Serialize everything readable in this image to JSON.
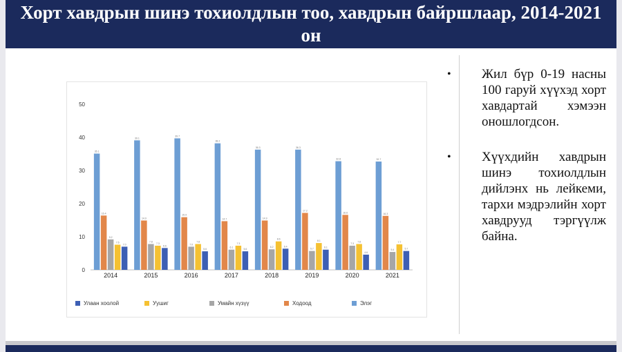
{
  "title": "Хорт хавдрын шинэ тохиолдлын тоо, хавдрын байршлаар, 2014-2021 он",
  "bullets": [
    "Жил бүр 0-19 насны 100 гаруй хүүхэд хорт хавдартай хэмээн оношлогдсон.",
    "Хүүхдийн хавдрын шинэ тохиолдлын дийлэнх нь лейкеми, тархи мэдрэлийн хорт хавдрууд тэргүүлж байна."
  ],
  "chart_data": {
    "type": "bar",
    "categories": [
      "2014",
      "2015",
      "2016",
      "2017",
      "2018",
      "2019",
      "2020",
      "2021"
    ],
    "ylim": [
      0,
      50
    ],
    "yticks": [
      "0",
      "10",
      "20",
      "30",
      "40",
      "50"
    ],
    "grid": false,
    "legend_position": "bottom",
    "series": [
      {
        "name": "Элэг",
        "color": "#6d9ed4",
        "values": [
          35.1,
          39.1,
          39.7,
          38.2,
          36.3,
          36.3,
          32.8,
          32.7
        ]
      },
      {
        "name": "Ходоод",
        "color": "#e2874a",
        "values": [
          16.4,
          14.9,
          15.9,
          14.7,
          14.9,
          17.2,
          16.6,
          16.3
        ]
      },
      {
        "name": "Умайн хүзүү",
        "color": "#a6a6a6",
        "values": [
          9.2,
          7.8,
          7.0,
          6.1,
          6.2,
          5.7,
          7.3,
          5.4
        ]
      },
      {
        "name": "Уушиг",
        "color": "#f5c132",
        "values": [
          7.6,
          7.3,
          7.8,
          7.3,
          8.6,
          8.1,
          7.8,
          7.7
        ]
      },
      {
        "name": "Улаан хоолой",
        "color": "#3d5fb4",
        "values": [
          7.0,
          6.6,
          5.6,
          5.6,
          6.4,
          6.1,
          4.6,
          5.7
        ]
      }
    ],
    "legend_order": [
      "Улаан хоолой",
      "Уушиг",
      "Умайн хүзүү",
      "Ходоод",
      "Элэг"
    ]
  }
}
